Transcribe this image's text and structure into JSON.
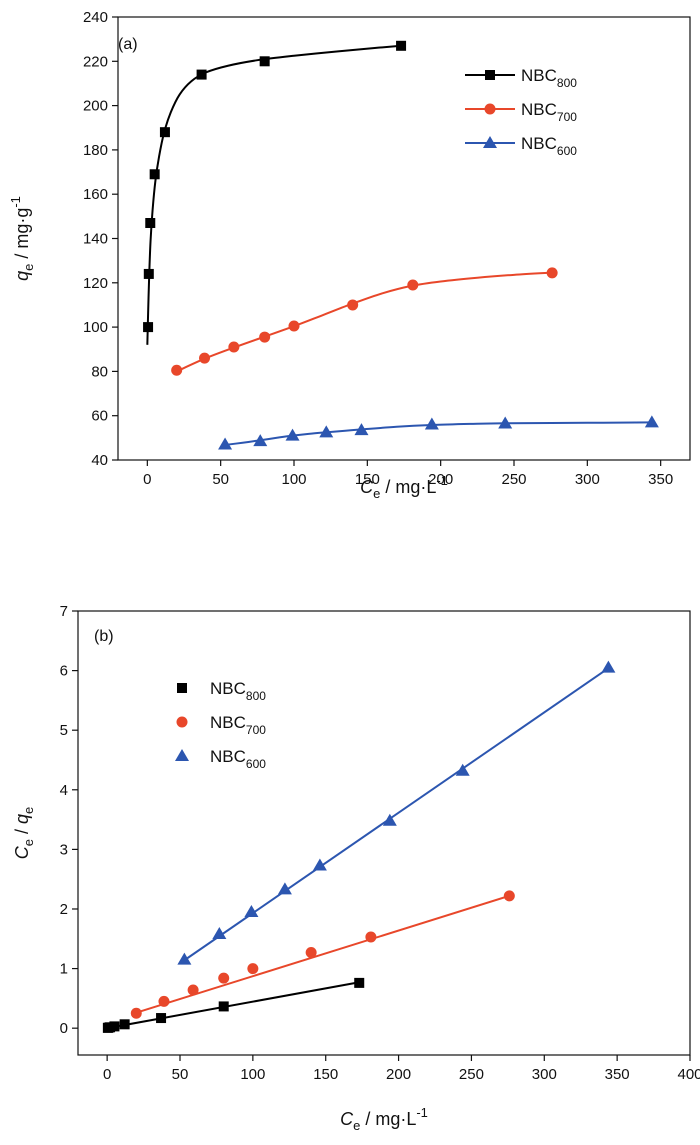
{
  "colors": {
    "NBC800": "#000000",
    "NBC700": "#e8472a",
    "NBC600": "#2c56b0"
  },
  "chart_data": [
    {
      "type": "line",
      "panel_label": "(a)",
      "xlabel": {
        "main": "C",
        "sub": "e",
        "unit": " / mg·L",
        "sup": "-1"
      },
      "ylabel": {
        "main": "q",
        "sub": "e",
        "unit": " / mg·g",
        "sup": "-1"
      },
      "xlim": [
        -20,
        370
      ],
      "ylim": [
        40,
        240
      ],
      "xticks": [
        0,
        50,
        100,
        150,
        200,
        250,
        300,
        350
      ],
      "yticks": [
        40,
        60,
        80,
        100,
        120,
        140,
        160,
        180,
        200,
        220,
        240
      ],
      "legend_position": "top-right",
      "series": [
        {
          "name": "NBC",
          "name_sub": "800",
          "marker": "square",
          "color_key": "NBC800",
          "x": [
            0.5,
            1,
            2,
            5,
            12,
            37,
            80,
            173
          ],
          "y": [
            100,
            124,
            147,
            169,
            188,
            214,
            220,
            227
          ],
          "fit": [
            [
              0,
              92
            ],
            [
              0.6,
              108
            ],
            [
              1.3,
              124
            ],
            [
              2.2,
              139
            ],
            [
              3.6,
              153
            ],
            [
              5.5,
              166
            ],
            [
              8,
              177
            ],
            [
              11.5,
              188
            ],
            [
              16,
              197
            ],
            [
              22,
              205
            ],
            [
              30,
              211
            ],
            [
              40,
              215
            ],
            [
              55,
              218
            ],
            [
              75,
              220.5
            ],
            [
              100,
              222.5
            ],
            [
              130,
              224.5
            ],
            [
              155,
              226
            ],
            [
              173,
              227
            ]
          ]
        },
        {
          "name": "NBC",
          "name_sub": "700",
          "marker": "circle",
          "color_key": "NBC700",
          "x": [
            20,
            39,
            59,
            80,
            100,
            140,
            181,
            276
          ],
          "y": [
            80.5,
            86,
            91,
            95.5,
            100.5,
            110,
            119,
            124.5
          ],
          "fit": [
            [
              20,
              80
            ],
            [
              40,
              86
            ],
            [
              60,
              91
            ],
            [
              80,
              95.7
            ],
            [
              100,
              100.4
            ],
            [
              120,
              105.5
            ],
            [
              140,
              110.6
            ],
            [
              160,
              115.2
            ],
            [
              180,
              118.6
            ],
            [
              200,
              120.6
            ],
            [
              225,
              122.3
            ],
            [
              250,
              123.6
            ],
            [
              276,
              124.6
            ]
          ]
        },
        {
          "name": "NBC",
          "name_sub": "600",
          "marker": "triangle",
          "color_key": "NBC600",
          "x": [
            53,
            77,
            99,
            122,
            146,
            194,
            244,
            344
          ],
          "y": [
            47,
            48.5,
            51,
            52.5,
            53.5,
            56,
            56.5,
            57
          ],
          "fit": [
            [
              53,
              46.8
            ],
            [
              65,
              47.8
            ],
            [
              77,
              48.9
            ],
            [
              90,
              50.2
            ],
            [
              99,
              51
            ],
            [
              110,
              51.8
            ],
            [
              122,
              52.5
            ],
            [
              135,
              53.2
            ],
            [
              146,
              53.8
            ],
            [
              170,
              55
            ],
            [
              194,
              55.8
            ],
            [
              220,
              56.3
            ],
            [
              244,
              56.6
            ],
            [
              300,
              56.8
            ],
            [
              344,
              57
            ]
          ]
        }
      ]
    },
    {
      "type": "scatter",
      "panel_label": "(b)",
      "xlabel": {
        "main": "C",
        "sub": "e",
        "unit": " / mg·L",
        "sup": "-1"
      },
      "ylabel": {
        "main": "C",
        "sub": "e",
        "mid": " / ",
        "main2": "q",
        "sub2": "e"
      },
      "xlim": [
        -20,
        400
      ],
      "ylim": [
        -0.45,
        7
      ],
      "xticks": [
        0,
        50,
        100,
        150,
        200,
        250,
        300,
        350,
        400
      ],
      "yticks": [
        0,
        1,
        2,
        3,
        4,
        5,
        6,
        7
      ],
      "legend_position": "top-left",
      "series": [
        {
          "name": "NBC",
          "name_sub": "800",
          "marker": "square",
          "color_key": "NBC800",
          "x": [
            0.5,
            1,
            2,
            5,
            12,
            37,
            80,
            173
          ],
          "y": [
            0.005,
            0.01,
            0.015,
            0.03,
            0.065,
            0.17,
            0.365,
            0.76
          ],
          "fit": [
            [
              0,
              0.0
            ],
            [
              173,
              0.77
            ]
          ]
        },
        {
          "name": "NBC",
          "name_sub": "700",
          "marker": "circle",
          "color_key": "NBC700",
          "x": [
            20,
            39,
            59,
            80,
            100,
            140,
            181,
            276
          ],
          "y": [
            0.25,
            0.45,
            0.64,
            0.84,
            1.0,
            1.27,
            1.53,
            2.22
          ],
          "fit": [
            [
              20,
              0.26
            ],
            [
              276,
              2.22
            ]
          ]
        },
        {
          "name": "NBC",
          "name_sub": "600",
          "marker": "triangle",
          "color_key": "NBC600",
          "x": [
            53,
            77,
            99,
            122,
            146,
            194,
            244,
            344
          ],
          "y": [
            1.15,
            1.58,
            1.95,
            2.33,
            2.73,
            3.48,
            4.32,
            6.05
          ],
          "fit": [
            [
              53,
              1.14
            ],
            [
              344,
              6.04
            ]
          ]
        }
      ]
    }
  ]
}
